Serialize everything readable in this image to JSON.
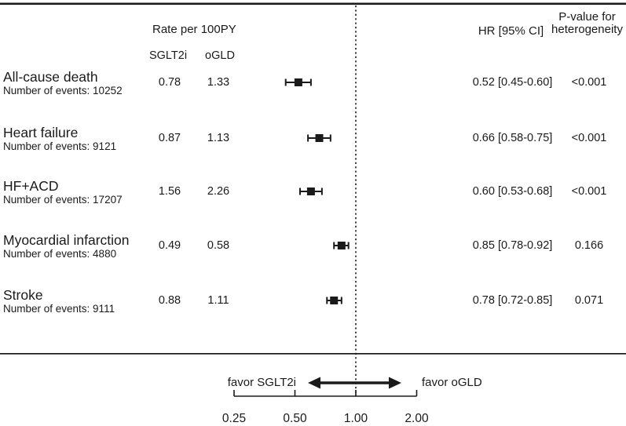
{
  "meta": {
    "background": "#ffffff",
    "ink": "#1a1a1a"
  },
  "headers": {
    "rate_group": "Rate per 100PY",
    "col_sglt2i": "SGLT2i",
    "col_ogld": "oGLD",
    "hr": "HR [95% CI]",
    "p_line1": "P-value for",
    "p_line2": "heterogeneity"
  },
  "chart_data": {
    "type": "forest",
    "x_scale": "log2",
    "x_ticks": [
      0.25,
      0.5,
      1.0,
      2.0
    ],
    "x_tick_labels": [
      "0.25",
      "0.50",
      "1.00",
      "2.00"
    ],
    "reference_line": 1.0,
    "legend": {
      "left": "favor SGLT2i",
      "right": "favor oGLD"
    },
    "rows": [
      {
        "label": "All-cause death",
        "events_label": "Number of events: 10252",
        "rate_sglt2i": "0.78",
        "rate_ogld": "1.33",
        "hr": 0.52,
        "ci_low": 0.45,
        "ci_high": 0.6,
        "hr_label": "0.52 [0.45-0.60]",
        "p_label": "<0.001"
      },
      {
        "label": "Heart failure",
        "events_label": "Number of events: 9121",
        "rate_sglt2i": "0.87",
        "rate_ogld": "1.13",
        "hr": 0.66,
        "ci_low": 0.58,
        "ci_high": 0.75,
        "hr_label": "0.66 [0.58-0.75]",
        "p_label": "<0.001"
      },
      {
        "label": "HF+ACD",
        "events_label": "Number of events: 17207",
        "rate_sglt2i": "1.56",
        "rate_ogld": "2.26",
        "hr": 0.6,
        "ci_low": 0.53,
        "ci_high": 0.68,
        "hr_label": "0.60 [0.53-0.68]",
        "p_label": "<0.001"
      },
      {
        "label": "Myocardial infarction",
        "events_label": "Number of events: 4880",
        "rate_sglt2i": "0.49",
        "rate_ogld": "0.58",
        "hr": 0.85,
        "ci_low": 0.78,
        "ci_high": 0.92,
        "hr_label": "0.85 [0.78-0.92]",
        "p_label": "0.166"
      },
      {
        "label": "Stroke",
        "events_label": "Number of events: 9111",
        "rate_sglt2i": "0.88",
        "rate_ogld": "1.11",
        "hr": 0.78,
        "ci_low": 0.72,
        "ci_high": 0.85,
        "hr_label": "0.78 [0.72-0.85]",
        "p_label": "0.071"
      }
    ]
  }
}
